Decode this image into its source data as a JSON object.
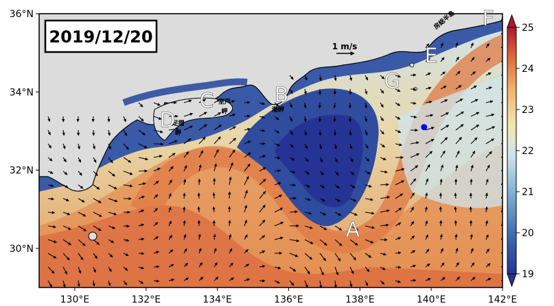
{
  "map": {
    "date": "2019/12/20",
    "scale_label": "1 m/s",
    "lat_ticks": [
      "30°N",
      "32°N",
      "34°N",
      "36°N"
    ],
    "lon_ticks": [
      "130°E",
      "132°E",
      "134°E",
      "136°E",
      "138°E",
      "140°E",
      "142°E"
    ],
    "extent": {
      "lon": [
        129,
        142
      ],
      "lat": [
        29,
        36
      ]
    },
    "colorbar": {
      "min": 19,
      "max": 25,
      "ticks": [
        "19",
        "20",
        "21",
        "22",
        "23",
        "24",
        "25"
      ],
      "colors": [
        "#253494",
        "#3f6cb3",
        "#7fb2d4",
        "#cfe4ec",
        "#f3e7b0",
        "#f2b36a",
        "#de6a3a",
        "#b2182b"
      ]
    },
    "region_labels": [
      {
        "text": "A",
        "lon": 137.8,
        "lat": 30.3
      },
      {
        "text": "B",
        "lon": 135.8,
        "lat": 33.75
      },
      {
        "text": "C",
        "lon": 133.7,
        "lat": 33.6
      },
      {
        "text": "D",
        "lon": 132.6,
        "lat": 33.1
      },
      {
        "text": "E",
        "lon": 140.0,
        "lat": 34.75
      },
      {
        "text": "F",
        "lon": 141.6,
        "lat": 35.7
      },
      {
        "text": "G",
        "lon": 138.9,
        "lat": 34.1
      }
    ],
    "place_labels": [
      {
        "text": "室戸",
        "lon": 134.2,
        "lat": 33.7
      },
      {
        "text": "岬",
        "lon": 134.2,
        "lat": 33.45
      },
      {
        "text": "潮岬",
        "lon": 135.7,
        "lat": 33.5
      },
      {
        "text": "足摺",
        "lon": 132.9,
        "lat": 33.15
      },
      {
        "text": "岬",
        "lon": 132.9,
        "lat": 32.9
      },
      {
        "text": "房総半島",
        "lon": 140.4,
        "lat": 35.8
      }
    ],
    "station": {
      "lon": 139.8,
      "lat": 33.1,
      "color": "#0000ff"
    }
  }
}
